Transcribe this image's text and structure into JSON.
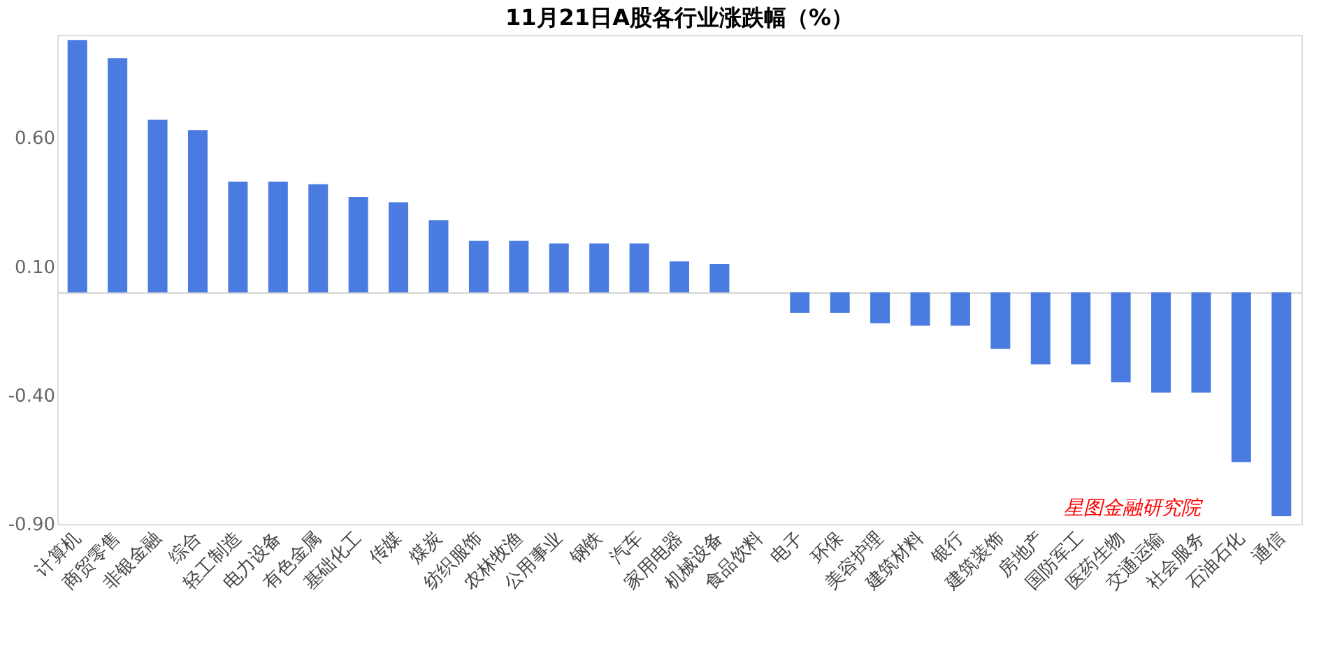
{
  "chart_data": {
    "type": "bar",
    "title": "11月21日A股各行业涨跌幅（%）",
    "categories": [
      "计算机",
      "商贸零售",
      "非银金融",
      "综合",
      "轻工制造",
      "电力设备",
      "有色金属",
      "基础化工",
      "传媒",
      "煤炭",
      "纺织服饰",
      "农林牧渔",
      "公用事业",
      "钢铁",
      "汽车",
      "家用电器",
      "机械设备",
      "食品饮料",
      "电子",
      "环保",
      "美容护理",
      "建筑材料",
      "银行",
      "建筑装饰",
      "房地产",
      "国防军工",
      "医药生物",
      "交通运输",
      "社会服务",
      "石油石化",
      "通信"
    ],
    "values": [
      0.98,
      0.91,
      0.67,
      0.63,
      0.43,
      0.43,
      0.42,
      0.37,
      0.35,
      0.28,
      0.2,
      0.2,
      0.19,
      0.19,
      0.19,
      0.12,
      0.11,
      0.0,
      -0.08,
      -0.08,
      -0.12,
      -0.13,
      -0.13,
      -0.22,
      -0.28,
      -0.28,
      -0.35,
      -0.39,
      -0.39,
      -0.66,
      -0.87
    ],
    "color": "#4a7be0",
    "ylim": [
      -0.9,
      1.0
    ],
    "yticks": [
      {
        "value": -0.9,
        "label": "-0.90"
      },
      {
        "value": -0.4,
        "label": "-0.40"
      },
      {
        "value": 0.1,
        "label": "0.10"
      },
      {
        "value": 0.6,
        "label": "0.60"
      }
    ],
    "grid": false,
    "annotations": [
      "星图金融研究院"
    ]
  }
}
